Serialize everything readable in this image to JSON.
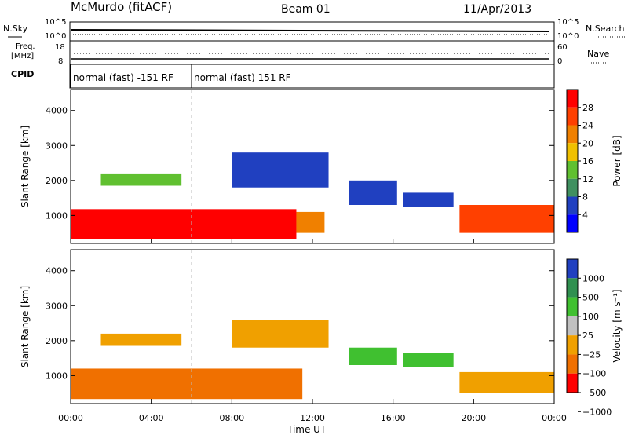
{
  "header": {
    "station": "McMurdo (fitACF)",
    "beam": "Beam 01",
    "date": "11/Apr/2013"
  },
  "summary": {
    "nsky_label": "N.Sky",
    "nsearch_label": "N.Search",
    "freq_label_1": "Freq.",
    "freq_label_2": "[MHz]",
    "nave_label": "Nave",
    "cpid_label": "CPID",
    "left_ticks": [
      "10^5",
      "10^0",
      "18",
      "8"
    ],
    "right_ticks": [
      "10^5",
      "10^0",
      "60",
      "0"
    ],
    "cpid_segments": [
      {
        "label": "normal (fast) -151 RF",
        "start_h": 0.0,
        "end_h": 6.0
      },
      {
        "label": "normal (fast) 151 RF",
        "start_h": 6.0,
        "end_h": 24.0
      }
    ]
  },
  "chart_data": [
    {
      "type": "heatmap",
      "name": "power",
      "ylabel": "Slant Range [km]",
      "xlabel": "",
      "ylim": [
        200,
        4600
      ],
      "yticks": [
        "1000",
        "2000",
        "3000",
        "4000"
      ],
      "colorbar_label": "Power [dB]",
      "colorbar_ticks": [
        "4",
        "8",
        "12",
        "16",
        "20",
        "24",
        "28"
      ],
      "colors": [
        "#0000ff",
        "#2040c0",
        "#409060",
        "#60c030",
        "#f0c000",
        "#f08000",
        "#ff4000",
        "#ff0000"
      ],
      "regions": [
        {
          "t0": 0.0,
          "t1": 11.2,
          "r0": 330,
          "r1": 1180,
          "level": 7
        },
        {
          "t0": 11.2,
          "t1": 12.6,
          "r0": 500,
          "r1": 1100,
          "level": 5
        },
        {
          "t0": 13.8,
          "t1": 16.2,
          "r0": 1300,
          "r1": 2000,
          "level": 1
        },
        {
          "t0": 16.5,
          "t1": 19.0,
          "r0": 1250,
          "r1": 1650,
          "level": 1
        },
        {
          "t0": 19.3,
          "t1": 24.0,
          "r0": 500,
          "r1": 1300,
          "level": 6
        },
        {
          "t0": 1.5,
          "t1": 5.5,
          "r0": 1850,
          "r1": 2200,
          "level": 3
        },
        {
          "t0": 8.0,
          "t1": 12.8,
          "r0": 1800,
          "r1": 2800,
          "level": 1
        }
      ]
    },
    {
      "type": "heatmap",
      "name": "velocity",
      "ylabel": "Slant Range [km]",
      "xlabel": "Time UT",
      "ylim": [
        200,
        4600
      ],
      "yticks": [
        "1000",
        "2000",
        "3000",
        "4000"
      ],
      "xticks": [
        "00:00",
        "04:00",
        "08:00",
        "12:00",
        "16:00",
        "20:00",
        "00:00"
      ],
      "colorbar_label": "Velocity [m s⁻¹]",
      "colorbar_ticks": [
        "1000",
        "500",
        "100",
        "25",
        "−25",
        "−100",
        "−500",
        "−1000"
      ],
      "colors": [
        "#2040c0",
        "#309050",
        "#40c030",
        "#c0c0c0",
        "#f0a000",
        "#f07000",
        "#ff0000"
      ],
      "regions": [
        {
          "t0": 0.0,
          "t1": 11.5,
          "r0": 330,
          "r1": 1200,
          "level": 5
        },
        {
          "t0": 13.8,
          "t1": 16.2,
          "r0": 1300,
          "r1": 1800,
          "level": 2
        },
        {
          "t0": 16.5,
          "t1": 19.0,
          "r0": 1250,
          "r1": 1650,
          "level": 2
        },
        {
          "t0": 19.3,
          "t1": 24.0,
          "r0": 500,
          "r1": 1100,
          "level": 4
        },
        {
          "t0": 1.5,
          "t1": 5.5,
          "r0": 1850,
          "r1": 2200,
          "level": 4
        },
        {
          "t0": 8.0,
          "t1": 12.8,
          "r0": 1800,
          "r1": 2600,
          "level": 4
        }
      ]
    }
  ]
}
